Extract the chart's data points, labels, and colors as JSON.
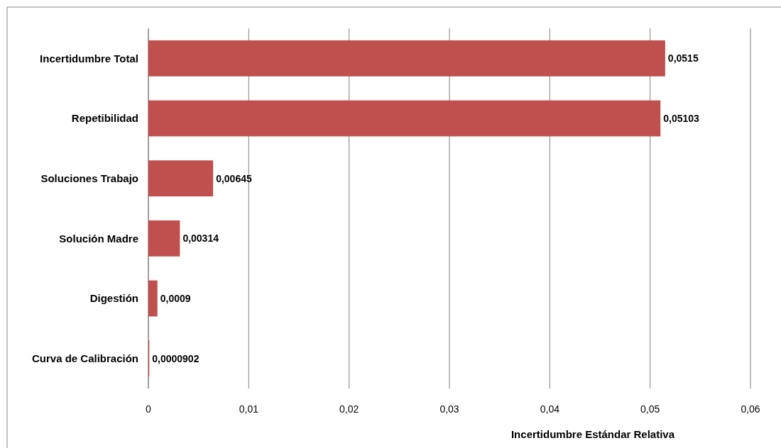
{
  "chart_data": {
    "type": "bar",
    "orientation": "horizontal",
    "xlabel": "Incertidumbre Estándar Relativa",
    "categories": [
      "Incertidumbre Total",
      "Repetibilidad",
      "Soluciones Trabajo",
      "Solución Madre",
      "Digestión",
      "Curva de Calibración"
    ],
    "values": [
      0.0515,
      0.05103,
      0.00645,
      0.00314,
      0.0009,
      9.02e-05
    ],
    "value_labels": [
      "0,0515",
      "0,05103",
      "0,00645",
      "0,00314",
      "0,0009",
      "0,0000902"
    ],
    "color": "#c0504d",
    "xlim": [
      0,
      0.06
    ],
    "xticks": [
      0,
      {
        "value": 0.01,
        "label": "0,01"
      },
      {
        "value": 0.02,
        "label": "0,02"
      },
      {
        "value": 0.03,
        "label": "0,03"
      },
      {
        "value": 0.04,
        "label": "0,04"
      },
      {
        "value": 0.05,
        "label": "0,05"
      },
      {
        "value": 0.06,
        "label": "0,06"
      }
    ],
    "grid": "x"
  }
}
